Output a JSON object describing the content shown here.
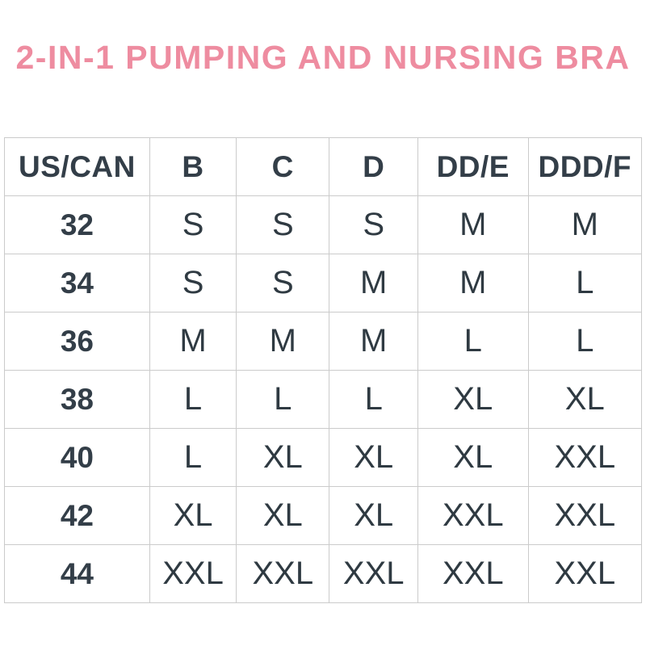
{
  "colors": {
    "title_pink": "#ee8ca0",
    "text_dark": "#333e48",
    "border_gray": "#cbcbcb",
    "background": "#ffffff"
  },
  "chart_data": {
    "type": "table",
    "title": "2-IN-1 PUMPING AND NURSING BRA",
    "columns": [
      "US/CAN",
      "B",
      "C",
      "D",
      "DD/E",
      "DDD/F"
    ],
    "column_width_percents": [
      22.8,
      13.6,
      14.6,
      13.9,
      17.3,
      17.8
    ],
    "rows": [
      [
        "32",
        "S",
        "S",
        "S",
        "M",
        "M"
      ],
      [
        "34",
        "S",
        "S",
        "M",
        "M",
        "L"
      ],
      [
        "36",
        "M",
        "M",
        "M",
        "L",
        "L"
      ],
      [
        "38",
        "L",
        "L",
        "L",
        "XL",
        "XL"
      ],
      [
        "40",
        "L",
        "XL",
        "XL",
        "XL",
        "XXL"
      ],
      [
        "42",
        "XL",
        "XL",
        "XL",
        "XXL",
        "XXL"
      ],
      [
        "44",
        "XXL",
        "XXL",
        "XXL",
        "XXL",
        "XXL"
      ]
    ]
  }
}
